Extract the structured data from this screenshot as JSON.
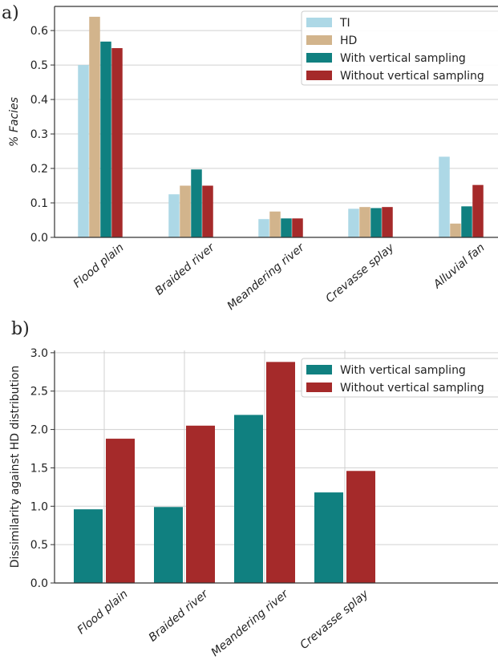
{
  "panels": {
    "a_label": "a)",
    "b_label": "b)"
  },
  "chart_data": [
    {
      "type": "bar",
      "categories": [
        "Flood plain",
        "Braided river",
        "Meandering river",
        "Crevasse splay",
        "Alluvial fan"
      ],
      "ylabel": "% Facies",
      "xlabel": "",
      "ylim": [
        0,
        0.67
      ],
      "yticks": [
        "0.0",
        "0.1",
        "0.2",
        "0.3",
        "0.4",
        "0.5",
        "0.6"
      ],
      "ytick_values": [
        0,
        0.1,
        0.2,
        0.3,
        0.4,
        0.5,
        0.6
      ],
      "grid": "y",
      "legend": "top-right",
      "series": [
        {
          "name": "TI",
          "color": "#add8e6",
          "values": [
            0.5,
            0.125,
            0.053,
            0.083,
            0.234
          ]
        },
        {
          "name": "HD",
          "color": "#d2b48c",
          "values": [
            0.64,
            0.15,
            0.075,
            0.088,
            0.04
          ]
        },
        {
          "name": "With vertical sampling",
          "color": "#108080",
          "values": [
            0.568,
            0.197,
            0.055,
            0.085,
            0.09
          ]
        },
        {
          "name": "Without vertical sampling",
          "color": "#a52a2a",
          "values": [
            0.549,
            0.15,
            0.055,
            0.088,
            0.152
          ]
        }
      ]
    },
    {
      "type": "bar",
      "categories": [
        "Flood plain",
        "Braided river",
        "Meandering river",
        "Crevasse splay"
      ],
      "ylabel": "Dissimilarity against HD distribution",
      "xlabel": "",
      "ylim": [
        0,
        3.03
      ],
      "yticks": [
        "0.0",
        "0.5",
        "1.0",
        "1.5",
        "2.0",
        "2.5",
        "3.0"
      ],
      "ytick_values": [
        0,
        0.5,
        1.0,
        1.5,
        2.0,
        2.5,
        3.0
      ],
      "grid": "xy",
      "legend": "top-right",
      "series": [
        {
          "name": "With vertical sampling",
          "color": "#108080",
          "values": [
            0.96,
            0.99,
            2.19,
            1.18
          ]
        },
        {
          "name": "Without vertical sampling",
          "color": "#a52a2a",
          "values": [
            1.88,
            2.05,
            2.88,
            1.46
          ]
        }
      ]
    }
  ]
}
